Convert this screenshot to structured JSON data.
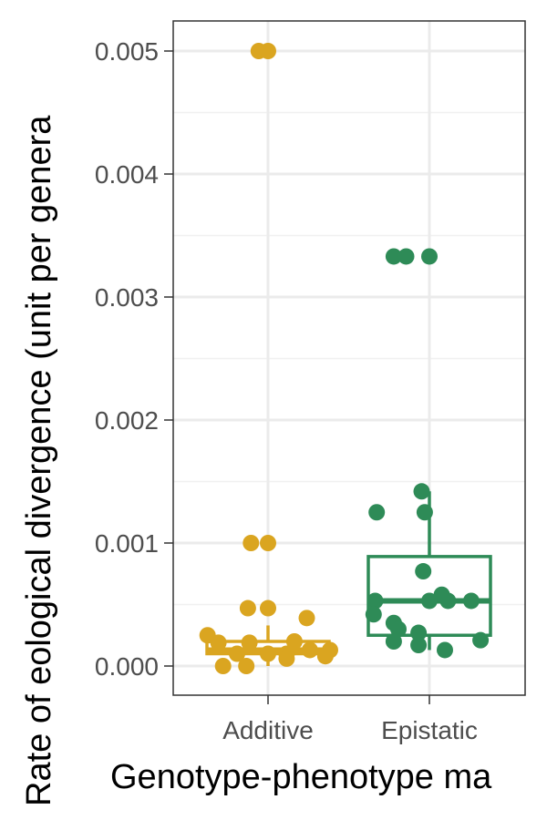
{
  "chart_data": {
    "type": "box",
    "title": "",
    "xlabel": "Genotype-phenotype ma",
    "ylabel": "Rate of eological divergence (unit per genera",
    "categories": [
      "Additive",
      "Epistatic"
    ],
    "ylim": [
      -0.0002,
      0.00525
    ],
    "y_ticks": [
      0.0,
      0.001,
      0.002,
      0.003,
      0.004,
      0.005
    ],
    "y_tick_labels": [
      "0.000",
      "0.001",
      "0.002",
      "0.003",
      "0.004",
      "0.005"
    ],
    "grid": true,
    "legend": "none",
    "colors": {
      "Additive": "#DAA520",
      "Epistatic": "#2E8B57"
    },
    "boxes": [
      {
        "category": "Additive",
        "q1": 0.0001,
        "median": 0.00013,
        "q3": 0.0002,
        "whisker_low": 0.0,
        "whisker_high": 0.00033
      },
      {
        "category": "Epistatic",
        "q1": 0.00025,
        "median": 0.00053,
        "q3": 0.00089,
        "whisker_low": 0.00013,
        "whisker_high": 0.00142
      }
    ],
    "points": {
      "Additive": [
        {
          "x": -0.06,
          "y": 0.005
        },
        {
          "x": 0.0,
          "y": 0.005
        },
        {
          "x": -0.11,
          "y": 0.001
        },
        {
          "x": 0.0,
          "y": 0.001
        },
        {
          "x": -0.13,
          "y": 0.00047
        },
        {
          "x": 0.0,
          "y": 0.00047
        },
        {
          "x": 0.25,
          "y": 0.00039
        },
        {
          "x": -0.39,
          "y": 0.00025
        },
        {
          "x": -0.32,
          "y": 0.00019
        },
        {
          "x": -0.12,
          "y": 0.00019
        },
        {
          "x": 0.17,
          "y": 0.0002
        },
        {
          "x": 0.27,
          "y": 0.00013
        },
        {
          "x": 0.4,
          "y": 0.00013
        },
        {
          "x": -0.2,
          "y": 0.0001
        },
        {
          "x": 0.0,
          "y": 0.0001
        },
        {
          "x": 0.12,
          "y": 0.0001
        },
        {
          "x": 0.37,
          "y": 8e-05
        },
        {
          "x": 0.12,
          "y": 6e-05
        },
        {
          "x": -0.29,
          "y": 0.0
        },
        {
          "x": -0.14,
          "y": 0.0
        }
      ],
      "Epistatic": [
        {
          "x": -0.23,
          "y": 0.00333
        },
        {
          "x": -0.15,
          "y": 0.00333
        },
        {
          "x": 0.0,
          "y": 0.00333
        },
        {
          "x": -0.05,
          "y": 0.00142
        },
        {
          "x": -0.34,
          "y": 0.00125
        },
        {
          "x": -0.03,
          "y": 0.00125
        },
        {
          "x": -0.04,
          "y": 0.00077
        },
        {
          "x": 0.08,
          "y": 0.00058
        },
        {
          "x": -0.35,
          "y": 0.00053
        },
        {
          "x": 0.0,
          "y": 0.00053
        },
        {
          "x": 0.12,
          "y": 0.00053
        },
        {
          "x": 0.27,
          "y": 0.00053
        },
        {
          "x": -0.36,
          "y": 0.00042
        },
        {
          "x": -0.23,
          "y": 0.00035
        },
        {
          "x": -0.2,
          "y": 0.0003
        },
        {
          "x": -0.07,
          "y": 0.00027
        },
        {
          "x": -0.23,
          "y": 0.0002
        },
        {
          "x": -0.07,
          "y": 0.00017
        },
        {
          "x": 0.33,
          "y": 0.00021
        },
        {
          "x": 0.1,
          "y": 0.00013
        }
      ]
    }
  }
}
